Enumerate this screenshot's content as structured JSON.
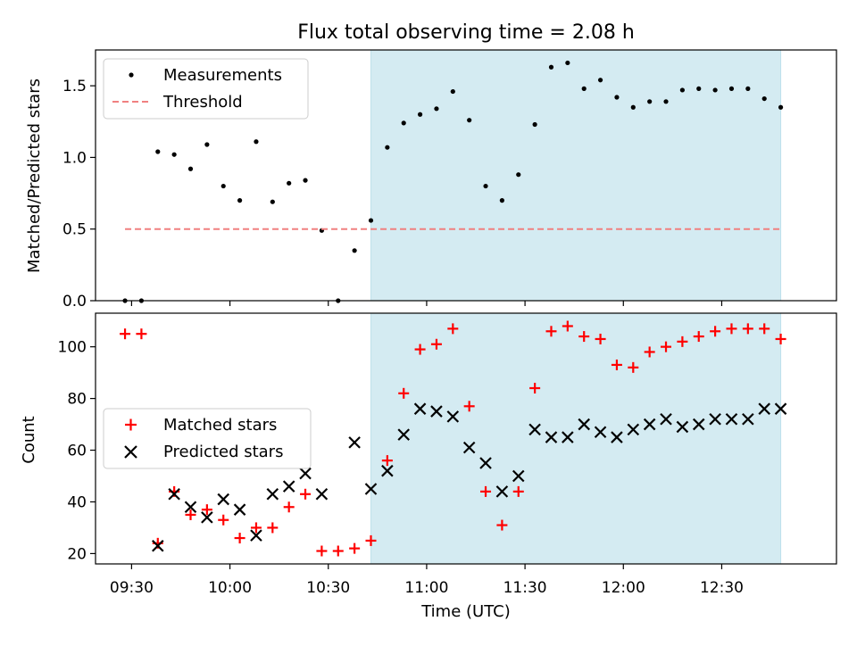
{
  "chart_data": {
    "title": "Flux total observing time = 2.08 h",
    "xlabel": "Time (UTC)",
    "x_unit": "time of day (UTC)",
    "x_ticks": [
      "09:30",
      "10:00",
      "10:30",
      "11:00",
      "11:30",
      "12:00",
      "12:30"
    ],
    "xlim": [
      "09:19",
      "13:05"
    ],
    "shaded_interval": {
      "x_range": [
        "10:43",
        "12:48"
      ],
      "color": "#add8e6"
    },
    "panels": [
      {
        "id": "ratio",
        "type": "scatter",
        "ylabel": "Matched/Predicted stars",
        "ylim": [
          0,
          1.75
        ],
        "y_ticks": [
          "0.0",
          "0.5",
          "1.0",
          "1.5"
        ],
        "legend_position": "upper-left",
        "series": [
          {
            "name": "Measurements",
            "marker": "dot",
            "color": "#000000",
            "points": [
              [
                "09:28",
                0.0
              ],
              [
                "09:33",
                0.0
              ],
              [
                "09:38",
                1.04
              ],
              [
                "09:43",
                1.02
              ],
              [
                "09:48",
                0.92
              ],
              [
                "09:53",
                1.09
              ],
              [
                "09:58",
                0.8
              ],
              [
                "10:03",
                0.7
              ],
              [
                "10:08",
                1.11
              ],
              [
                "10:13",
                0.69
              ],
              [
                "10:18",
                0.82
              ],
              [
                "10:23",
                0.84
              ],
              [
                "10:28",
                0.49
              ],
              [
                "10:33",
                0.0
              ],
              [
                "10:38",
                0.35
              ],
              [
                "10:43",
                0.56
              ],
              [
                "10:48",
                1.07
              ],
              [
                "10:53",
                1.24
              ],
              [
                "10:58",
                1.3
              ],
              [
                "11:03",
                1.34
              ],
              [
                "11:08",
                1.46
              ],
              [
                "11:13",
                1.26
              ],
              [
                "11:18",
                0.8
              ],
              [
                "11:23",
                0.7
              ],
              [
                "11:28",
                0.88
              ],
              [
                "11:33",
                1.23
              ],
              [
                "11:38",
                1.63
              ],
              [
                "11:43",
                1.66
              ],
              [
                "11:48",
                1.48
              ],
              [
                "11:53",
                1.54
              ],
              [
                "11:58",
                1.42
              ],
              [
                "12:03",
                1.35
              ],
              [
                "12:08",
                1.39
              ],
              [
                "12:13",
                1.39
              ],
              [
                "12:18",
                1.47
              ],
              [
                "12:23",
                1.48
              ],
              [
                "12:28",
                1.47
              ],
              [
                "12:33",
                1.48
              ],
              [
                "12:38",
                1.48
              ],
              [
                "12:43",
                1.41
              ],
              [
                "12:48",
                1.35
              ]
            ]
          },
          {
            "name": "Threshold",
            "type": "line",
            "style": "dashed",
            "color": "#f08080",
            "x_range": [
              "09:28",
              "12:48"
            ],
            "value": 0.5
          }
        ]
      },
      {
        "id": "counts",
        "type": "scatter",
        "ylabel": "Count",
        "ylim": [
          16,
          113
        ],
        "y_ticks": [
          "20",
          "40",
          "60",
          "80",
          "100"
        ],
        "legend_position": "center-left",
        "series": [
          {
            "name": "Matched stars",
            "marker": "plus",
            "color": "#ff0000",
            "points": [
              [
                "09:28",
                105
              ],
              [
                "09:33",
                105
              ],
              [
                "09:38",
                24
              ],
              [
                "09:43",
                44
              ],
              [
                "09:48",
                35
              ],
              [
                "09:53",
                37
              ],
              [
                "09:58",
                33
              ],
              [
                "10:03",
                26
              ],
              [
                "10:08",
                30
              ],
              [
                "10:13",
                30
              ],
              [
                "10:18",
                38
              ],
              [
                "10:23",
                43
              ],
              [
                "10:28",
                21
              ],
              [
                "10:33",
                21
              ],
              [
                "10:38",
                22
              ],
              [
                "10:43",
                25
              ],
              [
                "10:48",
                56
              ],
              [
                "10:53",
                82
              ],
              [
                "10:58",
                99
              ],
              [
                "11:03",
                101
              ],
              [
                "11:08",
                107
              ],
              [
                "11:13",
                77
              ],
              [
                "11:18",
                44
              ],
              [
                "11:23",
                31
              ],
              [
                "11:28",
                44
              ],
              [
                "11:33",
                84
              ],
              [
                "11:38",
                106
              ],
              [
                "11:43",
                108
              ],
              [
                "11:48",
                104
              ],
              [
                "11:53",
                103
              ],
              [
                "11:58",
                93
              ],
              [
                "12:03",
                92
              ],
              [
                "12:08",
                98
              ],
              [
                "12:13",
                100
              ],
              [
                "12:18",
                102
              ],
              [
                "12:23",
                104
              ],
              [
                "12:28",
                106
              ],
              [
                "12:33",
                107
              ],
              [
                "12:38",
                107
              ],
              [
                "12:43",
                107
              ],
              [
                "12:48",
                103
              ]
            ]
          },
          {
            "name": "Predicted stars",
            "marker": "x",
            "color": "#000000",
            "points": [
              [
                "09:38",
                23
              ],
              [
                "09:43",
                43
              ],
              [
                "09:48",
                38
              ],
              [
                "09:53",
                34
              ],
              [
                "09:58",
                41
              ],
              [
                "10:03",
                37
              ],
              [
                "10:08",
                27
              ],
              [
                "10:13",
                43
              ],
              [
                "10:18",
                46
              ],
              [
                "10:23",
                51
              ],
              [
                "10:28",
                43
              ],
              [
                "10:38",
                63
              ],
              [
                "10:43",
                45
              ],
              [
                "10:48",
                52
              ],
              [
                "10:53",
                66
              ],
              [
                "10:58",
                76
              ],
              [
                "11:03",
                75
              ],
              [
                "11:08",
                73
              ],
              [
                "11:13",
                61
              ],
              [
                "11:18",
                55
              ],
              [
                "11:23",
                44
              ],
              [
                "11:28",
                50
              ],
              [
                "11:33",
                68
              ],
              [
                "11:38",
                65
              ],
              [
                "11:43",
                65
              ],
              [
                "11:48",
                70
              ],
              [
                "11:53",
                67
              ],
              [
                "11:58",
                65
              ],
              [
                "12:03",
                68
              ],
              [
                "12:08",
                70
              ],
              [
                "12:13",
                72
              ],
              [
                "12:18",
                69
              ],
              [
                "12:23",
                70
              ],
              [
                "12:28",
                72
              ],
              [
                "12:33",
                72
              ],
              [
                "12:38",
                72
              ],
              [
                "12:43",
                76
              ],
              [
                "12:48",
                76
              ]
            ]
          }
        ]
      }
    ]
  }
}
